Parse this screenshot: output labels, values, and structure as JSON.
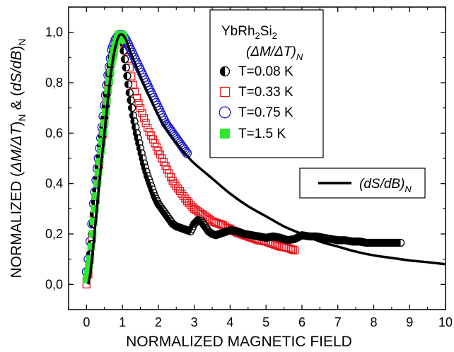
{
  "chart_data": {
    "type": "scatter",
    "title": "",
    "xlabel": "NORMALIZED MAGNETIC FIELD",
    "ylabel_parts": [
      "NORMALIZED (",
      "ΔM/ΔT",
      ")",
      "N",
      " & (",
      "dS/dB",
      ")",
      "N"
    ],
    "xlim": [
      -0.5,
      10
    ],
    "ylim": [
      -0.1,
      1.1
    ],
    "x_ticks": [
      0,
      1,
      2,
      3,
      4,
      5,
      6,
      7,
      8,
      9,
      10
    ],
    "x_tick_labels": [
      "0",
      "1",
      "2",
      "3",
      "4",
      "5",
      "6",
      "7",
      "8",
      "9",
      "10"
    ],
    "y_ticks": [
      0.0,
      0.2,
      0.4,
      0.6,
      0.8,
      1.0
    ],
    "y_tick_labels": [
      "0,0",
      "0,2",
      "0,4",
      "0,6",
      "0,8",
      "1,0"
    ],
    "legend": {
      "position": "top-right",
      "compound": {
        "text": "YbRh",
        "sub1": "2",
        "text2": "Si",
        "sub2": "2"
      },
      "group_label": {
        "text": "(ΔM/ΔT)",
        "sub": "N"
      },
      "entries": [
        "T=0.08 K",
        "T=0.33 K",
        "T=0.75 K",
        "T=1.5 K"
      ]
    },
    "line_legend": {
      "position": "right",
      "text": "(dS/dB)",
      "sub": "N"
    },
    "colors": {
      "T008": "#000000",
      "T033": "#e8141c",
      "T075": "#1a1ad0",
      "T15": "#2ee82e",
      "curve": "#000000"
    },
    "series": [
      {
        "name": "T=0.08 K",
        "marker": "half-filled-circle",
        "x": [
          0.0,
          0.05,
          0.1,
          0.15,
          0.2,
          0.3,
          0.4,
          0.5,
          0.6,
          0.7,
          0.8,
          0.9,
          1.0,
          1.1,
          1.2,
          1.3,
          1.4,
          1.5,
          1.6,
          1.7,
          1.8,
          1.9,
          2.0,
          2.1,
          2.2,
          2.3,
          2.4,
          2.5,
          2.6,
          2.7,
          2.8,
          2.9,
          3.0,
          3.1,
          3.2,
          3.3,
          3.4,
          3.5,
          3.6,
          3.7,
          3.8,
          4.0,
          4.2,
          4.4,
          4.6,
          4.8,
          5.0,
          5.2,
          5.4,
          5.6,
          5.8,
          6.0,
          6.2,
          6.4,
          6.6,
          6.8,
          7.0,
          7.2,
          7.4,
          7.6,
          7.8,
          8.0,
          8.2,
          8.4,
          8.6,
          8.75
        ],
        "y": [
          0.02,
          0.05,
          0.12,
          0.2,
          0.28,
          0.42,
          0.55,
          0.66,
          0.8,
          0.9,
          0.96,
          0.99,
          0.96,
          0.86,
          0.76,
          0.67,
          0.6,
          0.54,
          0.48,
          0.43,
          0.39,
          0.35,
          0.32,
          0.3,
          0.28,
          0.26,
          0.24,
          0.23,
          0.225,
          0.22,
          0.215,
          0.21,
          0.24,
          0.255,
          0.25,
          0.23,
          0.21,
          0.2,
          0.195,
          0.2,
          0.205,
          0.215,
          0.21,
          0.2,
          0.195,
          0.19,
          0.185,
          0.19,
          0.185,
          0.175,
          0.18,
          0.195,
          0.19,
          0.19,
          0.185,
          0.18,
          0.175,
          0.175,
          0.17,
          0.17,
          0.165,
          0.165,
          0.165,
          0.165,
          0.165,
          0.165
        ]
      },
      {
        "name": "T=0.33 K",
        "marker": "open-square",
        "x": [
          0.0,
          0.05,
          0.1,
          0.2,
          0.3,
          0.4,
          0.5,
          0.6,
          0.7,
          0.8,
          0.9,
          1.0,
          1.1,
          1.2,
          1.3,
          1.4,
          1.5,
          1.6,
          1.7,
          1.8,
          1.9,
          2.0,
          2.1,
          2.2,
          2.3,
          2.4,
          2.5,
          2.6,
          2.7,
          2.8,
          2.9,
          3.0,
          3.1,
          3.2,
          3.3,
          3.4,
          3.5,
          3.6,
          3.7,
          3.8,
          3.9,
          4.0,
          4.2,
          4.4,
          4.6,
          4.8,
          5.0,
          5.2,
          5.4,
          5.6,
          5.8
        ],
        "y": [
          0.0,
          0.04,
          0.1,
          0.26,
          0.41,
          0.54,
          0.65,
          0.79,
          0.89,
          0.95,
          0.99,
          0.98,
          0.93,
          0.86,
          0.79,
          0.74,
          0.7,
          0.66,
          0.62,
          0.59,
          0.56,
          0.53,
          0.5,
          0.47,
          0.44,
          0.41,
          0.39,
          0.37,
          0.35,
          0.33,
          0.315,
          0.3,
          0.29,
          0.28,
          0.27,
          0.26,
          0.25,
          0.245,
          0.24,
          0.235,
          0.225,
          0.22,
          0.205,
          0.195,
          0.185,
          0.175,
          0.17,
          0.16,
          0.15,
          0.145,
          0.135
        ]
      },
      {
        "name": "T=0.75 K",
        "marker": "open-circle",
        "x": [
          0.0,
          0.05,
          0.1,
          0.15,
          0.2,
          0.3,
          0.4,
          0.5,
          0.6,
          0.7,
          0.8,
          0.9,
          1.0,
          1.1,
          1.2,
          1.3,
          1.4,
          1.5,
          1.6,
          1.7,
          1.8,
          1.9,
          2.0,
          2.1,
          2.2,
          2.3,
          2.4,
          2.5,
          2.6,
          2.7,
          2.8
        ],
        "y": [
          0.05,
          0.1,
          0.17,
          0.24,
          0.32,
          0.46,
          0.58,
          0.71,
          0.83,
          0.93,
          0.97,
          0.99,
          0.99,
          0.97,
          0.94,
          0.91,
          0.88,
          0.85,
          0.82,
          0.79,
          0.76,
          0.73,
          0.7,
          0.67,
          0.64,
          0.62,
          0.6,
          0.58,
          0.56,
          0.54,
          0.52
        ]
      },
      {
        "name": "T=1.5 K",
        "marker": "filled-square",
        "x": [
          0.0,
          0.1,
          0.2,
          0.3,
          0.4,
          0.5,
          0.6,
          0.7,
          0.8,
          0.9,
          1.0,
          1.05
        ],
        "y": [
          0.02,
          0.1,
          0.25,
          0.4,
          0.53,
          0.64,
          0.77,
          0.88,
          0.95,
          0.99,
          0.99,
          0.97
        ]
      }
    ],
    "line": {
      "name": "(dS/dB)N",
      "x": [
        0.05,
        0.1,
        0.15,
        0.2,
        0.3,
        0.4,
        0.5,
        0.6,
        0.7,
        0.8,
        0.9,
        1.0,
        1.1,
        1.2,
        1.4,
        1.6,
        1.8,
        2.0,
        2.2,
        2.5,
        2.8,
        3.0,
        3.5,
        4.0,
        4.5,
        5.0,
        5.5,
        6.0,
        6.5,
        7.0,
        7.5,
        8.0,
        8.5,
        9.0,
        9.5,
        10.0
      ],
      "y": [
        0.0,
        0.04,
        0.1,
        0.17,
        0.32,
        0.47,
        0.6,
        0.74,
        0.86,
        0.94,
        0.985,
        0.99,
        0.97,
        0.93,
        0.86,
        0.79,
        0.73,
        0.67,
        0.62,
        0.56,
        0.51,
        0.48,
        0.42,
        0.36,
        0.31,
        0.27,
        0.23,
        0.2,
        0.17,
        0.15,
        0.13,
        0.115,
        0.105,
        0.095,
        0.088,
        0.08
      ]
    }
  }
}
